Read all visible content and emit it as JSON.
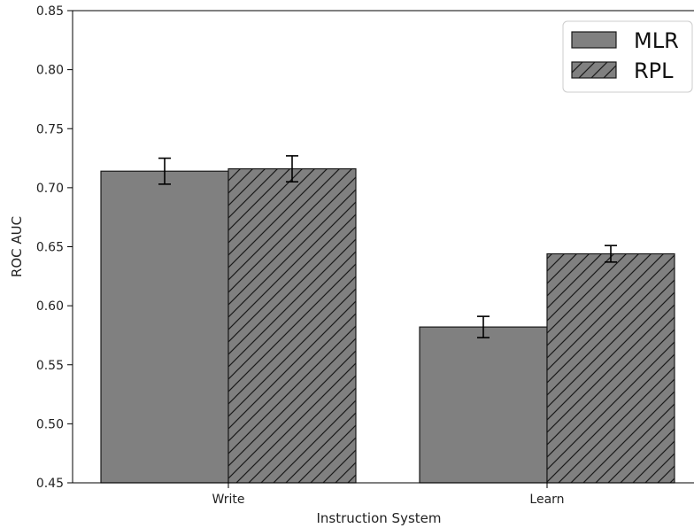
{
  "chart_data": {
    "type": "bar",
    "title": "",
    "xlabel": "Instruction System",
    "ylabel": "ROC AUC",
    "ylim": [
      0.45,
      0.85
    ],
    "yticks": [
      0.45,
      0.5,
      0.55,
      0.6,
      0.65,
      0.7,
      0.75,
      0.8,
      0.85
    ],
    "ytick_labels": [
      "0.45",
      "0.50",
      "0.55",
      "0.60",
      "0.65",
      "0.70",
      "0.75",
      "0.80",
      "0.85"
    ],
    "categories": [
      "Write",
      "Learn"
    ],
    "series": [
      {
        "name": "MLR",
        "values": [
          0.714,
          0.582
        ],
        "errors": [
          0.011,
          0.009
        ],
        "color": "#808080",
        "hatch": false
      },
      {
        "name": "RPL",
        "values": [
          0.716,
          0.644
        ],
        "errors": [
          0.011,
          0.007
        ],
        "color": "#808080",
        "hatch": true
      }
    ],
    "legend": {
      "placement": "top-right",
      "entries": [
        "MLR",
        "RPL"
      ]
    },
    "grid": false
  }
}
